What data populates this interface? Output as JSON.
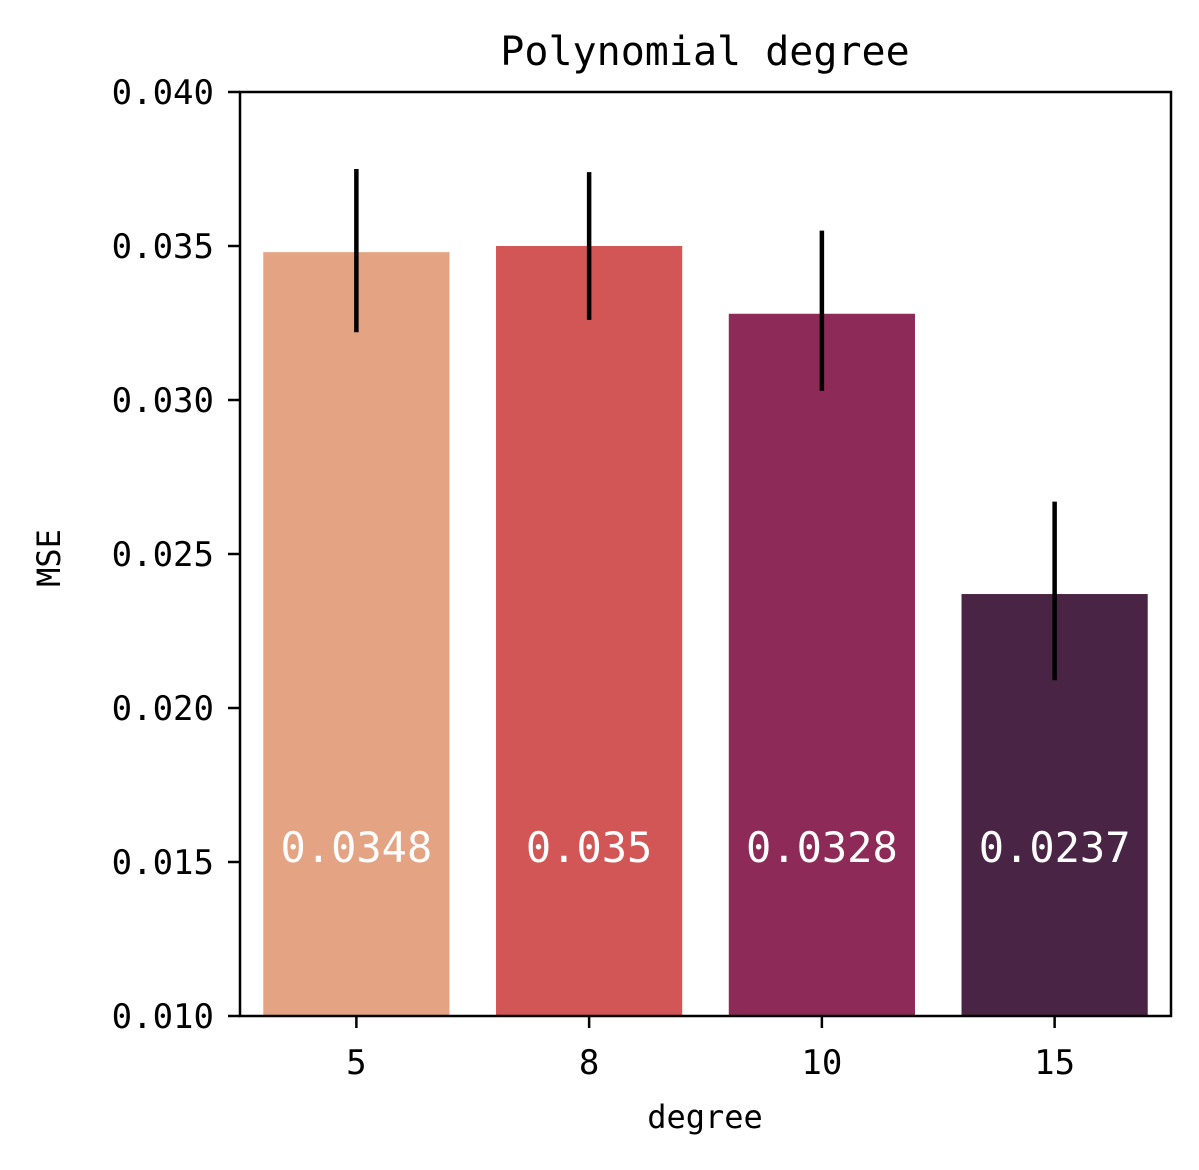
{
  "chart_data": {
    "type": "bar",
    "title": "Polynomial degree",
    "xlabel": "degree",
    "ylabel": "MSE",
    "categories": [
      "5",
      "8",
      "10",
      "15"
    ],
    "values": [
      0.0348,
      0.035,
      0.0328,
      0.0237
    ],
    "value_labels": [
      "0.0348",
      "0.035",
      "0.0328",
      "0.0237"
    ],
    "error_low": [
      0.0322,
      0.0326,
      0.0303,
      0.0209
    ],
    "error_high": [
      0.0375,
      0.0374,
      0.0355,
      0.0267
    ],
    "colors": [
      "#e4a383",
      "#d25656",
      "#8e2a58",
      "#4a2444"
    ],
    "ylim": [
      0.01,
      0.04
    ],
    "yticks": [
      0.01,
      0.015,
      0.02,
      0.025,
      0.03,
      0.035,
      0.04
    ],
    "ytick_labels": [
      "0.010",
      "0.015",
      "0.020",
      "0.025",
      "0.030",
      "0.035",
      "0.040"
    ],
    "grid": false,
    "legend": "none"
  }
}
